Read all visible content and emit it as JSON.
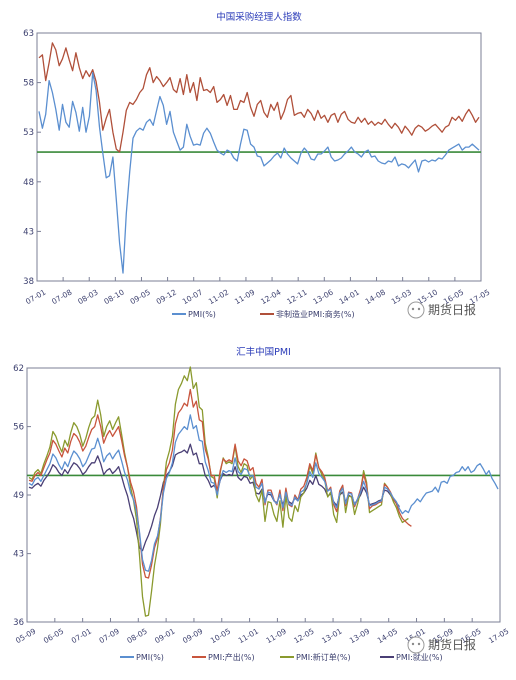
{
  "watermark": "期货日报",
  "chart_data": [
    {
      "type": "line",
      "title": "中国采购经理人指数",
      "ylim": [
        38,
        63
      ],
      "yticks": [
        "38",
        "43",
        "48",
        "53",
        "58",
        "63"
      ],
      "xticks": [
        "07-01",
        "07-08",
        "08-03",
        "08-10",
        "09-05",
        "09-12",
        "10-07",
        "11-02",
        "11-09",
        "12-04",
        "12-11",
        "13-06",
        "14-01",
        "14-08",
        "15-03",
        "15-10",
        "16-05",
        "17-05"
      ],
      "reference_line": 51,
      "grid": false,
      "legend_position": "bottom",
      "colors": {
        "frame": "#7b7f96",
        "axis_text": "#3b3f6e",
        "title": "#2a3bb8",
        "ref_line": "#3a8a3a"
      },
      "series": [
        {
          "name": "PMI(%)",
          "color": "#5b8fd0",
          "values": [
            55.1,
            53.4,
            54.8,
            58.2,
            57.0,
            55.3,
            53.2,
            55.8,
            54.0,
            53.5,
            56.1,
            55.0,
            53.1,
            55.5,
            53.0,
            54.6,
            59.0,
            57.2,
            53.5,
            50.9,
            48.4,
            48.6,
            50.5,
            46.2,
            41.8,
            38.8,
            44.8,
            49.0,
            52.4,
            53.1,
            53.4,
            53.2,
            54.0,
            54.3,
            53.7,
            55.2,
            56.6,
            55.7,
            53.8,
            55.1,
            53.0,
            52.1,
            51.2,
            51.5,
            53.8,
            52.6,
            51.7,
            51.8,
            51.7,
            52.9,
            53.4,
            52.9,
            52.0,
            51.2,
            50.9,
            50.7,
            51.2,
            51.0,
            50.4,
            50.1,
            51.8,
            53.3,
            53.2,
            51.8,
            51.5,
            50.6,
            50.5,
            49.6,
            49.9,
            50.2,
            50.6,
            50.9,
            50.4,
            51.4,
            50.8,
            50.4,
            50.1,
            49.8,
            50.9,
            51.4,
            51.0,
            50.3,
            50.2,
            50.8,
            50.8,
            51.1,
            51.5,
            50.5,
            50.1,
            50.2,
            50.4,
            50.8,
            51.1,
            51.5,
            51.0,
            50.8,
            50.5,
            51.0,
            51.2,
            50.5,
            50.6,
            50.1,
            49.9,
            49.8,
            50.1,
            50.0,
            50.5,
            49.6,
            49.8,
            49.7,
            49.4,
            49.8,
            50.2,
            49.0,
            50.1,
            50.2,
            50.0,
            50.2,
            50.1,
            50.4,
            50.3,
            50.7,
            51.2,
            51.4,
            51.6,
            51.8,
            51.2,
            51.5,
            51.5,
            51.8,
            51.5,
            51.2
          ]
        },
        {
          "name": "非制造业PMI:商务(%)",
          "color": "#b0503a",
          "values": [
            60.5,
            60.8,
            58.2,
            60.0,
            62.0,
            61.3,
            59.7,
            60.4,
            61.5,
            60.3,
            59.2,
            61.0,
            59.5,
            58.4,
            59.2,
            58.6,
            59.3,
            58.1,
            56.0,
            53.2,
            54.4,
            55.3,
            53.0,
            51.3,
            51.0,
            53.0,
            55.2,
            56.0,
            55.8,
            56.3,
            57.0,
            57.4,
            58.8,
            59.5,
            58.0,
            58.6,
            58.2,
            57.6,
            58.0,
            58.5,
            57.3,
            57.0,
            58.4,
            56.8,
            58.8,
            57.0,
            58.0,
            56.2,
            58.5,
            57.2,
            57.3,
            57.0,
            57.6,
            56.0,
            56.3,
            56.8,
            55.7,
            56.7,
            55.3,
            55.3,
            56.2,
            56.0,
            57.0,
            55.5,
            54.6,
            55.8,
            56.2,
            55.0,
            54.5,
            55.8,
            55.2,
            56.0,
            54.3,
            55.1,
            56.3,
            56.7,
            54.7,
            54.9,
            55.0,
            54.5,
            55.3,
            54.9,
            54.2,
            55.2,
            54.4,
            54.7,
            54.0,
            54.7,
            54.9,
            54.0,
            54.8,
            55.1,
            54.3,
            54.0,
            53.9,
            54.5,
            54.0,
            54.4,
            53.8,
            54.1,
            53.7,
            54.0,
            53.8,
            54.3,
            53.8,
            53.4,
            53.9,
            53.5,
            52.9,
            53.6,
            53.2,
            52.7,
            53.4,
            53.7,
            53.5,
            53.1,
            53.3,
            53.6,
            53.8,
            53.4,
            53.0,
            53.5,
            53.7,
            54.5,
            54.2,
            54.6,
            54.1,
            54.8,
            55.3,
            54.7,
            54.0,
            54.5
          ]
        }
      ]
    },
    {
      "type": "line",
      "title": "汇丰中国PMI",
      "ylim": [
        36,
        62
      ],
      "yticks": [
        "36",
        "43",
        "49",
        "56",
        "62"
      ],
      "xticks": [
        "05-09",
        "06-05",
        "07-01",
        "07-09",
        "08-05",
        "09-01",
        "09-09",
        "10-05",
        "11-01",
        "11-09",
        "12-05",
        "13-01",
        "13-09",
        "14-05",
        "15-01",
        "15-09",
        "16-05",
        "17-05"
      ],
      "reference_line": 51,
      "grid": false,
      "legend_position": "bottom",
      "colors": {
        "frame": "#7b7f96",
        "axis_text": "#3b3f6e",
        "title": "#2a3bb8",
        "ref_line": "#3a8a3a"
      },
      "series": [
        {
          "name": "PMI(%)",
          "color": "#5b8fd0",
          "values": [
            50.2,
            50.0,
            50.6,
            50.8,
            50.4,
            51.0,
            51.6,
            52.2,
            53.2,
            52.8,
            52.1,
            51.6,
            52.4,
            51.9,
            52.8,
            53.5,
            53.2,
            52.7,
            51.9,
            52.3,
            53.0,
            53.7,
            53.8,
            54.8,
            53.8,
            52.4,
            53.0,
            53.3,
            52.7,
            53.2,
            53.6,
            52.5,
            51.3,
            50.5,
            49.2,
            48.5,
            47.3,
            45.2,
            42.4,
            41.3,
            41.2,
            42.3,
            44.0,
            44.8,
            46.5,
            49.2,
            50.7,
            51.3,
            52.3,
            54.4,
            55.2,
            55.6,
            56.0,
            55.7,
            57.2,
            55.8,
            56.1,
            54.6,
            54.5,
            52.4,
            51.5,
            50.3,
            50.2,
            49.0,
            50.6,
            51.5,
            51.3,
            51.5,
            51.4,
            52.8,
            51.4,
            51.1,
            51.7,
            51.6,
            50.9,
            51.0,
            49.8,
            49.6,
            50.2,
            48.2,
            49.3,
            49.2,
            48.4,
            48.1,
            49.1,
            47.7,
            49.3,
            48.1,
            47.9,
            48.8,
            48.4,
            49.3,
            49.5,
            50.2,
            51.4,
            50.8,
            52.3,
            51.2,
            50.8,
            50.4,
            49.4,
            49.6,
            48.2,
            47.7,
            49.2,
            49.7,
            48.1,
            49.2,
            49.1,
            48.0,
            48.6,
            49.3,
            50.4,
            49.5,
            47.9,
            48.0,
            48.1,
            48.3,
            48.4,
            49.8,
            49.6,
            49.2,
            48.7,
            48.3,
            47.6,
            47.1,
            47.4,
            47.2,
            47.9,
            48.2,
            48.6,
            48.3,
            48.8,
            49.2,
            49.3,
            49.4,
            49.8,
            49.3,
            50.3,
            50.4,
            50.2,
            50.9,
            51.0,
            51.3,
            51.4,
            51.9,
            51.5,
            51.9,
            51.3,
            51.5,
            52.0,
            52.2,
            51.7,
            51.1,
            51.5,
            50.7,
            50.2,
            49.6
          ]
        },
        {
          "name": "PMI:产出(%)",
          "color": "#c8553d",
          "values": [
            50.5,
            50.4,
            51.0,
            51.3,
            51.0,
            51.8,
            52.6,
            53.3,
            54.6,
            54.2,
            53.5,
            52.9,
            53.8,
            53.3,
            54.5,
            55.3,
            55.0,
            54.4,
            53.5,
            54.0,
            54.9,
            55.7,
            56.0,
            57.2,
            56.0,
            54.3,
            55.1,
            55.6,
            55.0,
            55.5,
            56.0,
            54.6,
            53.0,
            51.8,
            50.3,
            49.3,
            47.8,
            45.0,
            41.9,
            40.6,
            40.5,
            41.8,
            43.6,
            44.6,
            46.6,
            49.7,
            51.6,
            52.3,
            53.6,
            56.3,
            57.4,
            57.8,
            58.4,
            58.1,
            59.8,
            58.0,
            58.6,
            56.7,
            56.5,
            53.7,
            52.7,
            51.0,
            51.0,
            49.4,
            51.5,
            52.7,
            52.4,
            52.6,
            52.4,
            54.2,
            52.5,
            52.0,
            52.7,
            52.5,
            51.5,
            51.8,
            50.2,
            49.8,
            50.6,
            48.0,
            49.5,
            49.5,
            48.5,
            48.0,
            49.5,
            47.4,
            49.7,
            48.0,
            47.8,
            49.0,
            48.5,
            49.6,
            49.9,
            50.8,
            52.2,
            51.5,
            53.1,
            51.8,
            51.4,
            50.8,
            49.4,
            49.8,
            48.0,
            47.3,
            49.4,
            50.0,
            47.9,
            49.3,
            49.2,
            47.8,
            48.6,
            49.6,
            51.1,
            50.0,
            47.6,
            47.9,
            48.0,
            48.2,
            48.3,
            50.1,
            49.8,
            49.3,
            48.6,
            48.1,
            47.2,
            46.6,
            46.3,
            46.0,
            45.8
          ]
        },
        {
          "name": "PMI:新订单(%)",
          "color": "#8a9a2e",
          "values": [
            50.8,
            50.6,
            51.3,
            51.6,
            51.2,
            52.2,
            53.0,
            53.9,
            55.5,
            55.0,
            54.1,
            53.4,
            54.6,
            54.0,
            55.4,
            56.4,
            56.0,
            55.2,
            54.0,
            54.8,
            55.9,
            56.8,
            57.1,
            58.7,
            57.2,
            55.0,
            56.0,
            56.6,
            55.7,
            56.4,
            57.0,
            55.2,
            53.3,
            51.8,
            49.8,
            48.4,
            46.5,
            42.8,
            38.6,
            36.6,
            36.7,
            39.1,
            41.8,
            43.6,
            46.0,
            49.8,
            52.4,
            53.5,
            55.0,
            58.3,
            59.8,
            60.4,
            61.2,
            60.7,
            62.1,
            59.9,
            60.5,
            58.0,
            57.7,
            54.3,
            52.9,
            50.9,
            50.7,
            48.7,
            51.3,
            52.8,
            52.2,
            52.4,
            52.2,
            54.0,
            51.9,
            51.3,
            52.2,
            52.0,
            50.6,
            51.0,
            49.0,
            48.3,
            49.5,
            46.3,
            48.3,
            48.2,
            47.0,
            46.3,
            48.4,
            45.7,
            48.9,
            46.7,
            46.3,
            47.9,
            47.3,
            48.8,
            49.2,
            50.3,
            52.0,
            51.2,
            53.3,
            51.8,
            51.1,
            50.5,
            48.8,
            49.3,
            47.0,
            46.2,
            49.0,
            49.9,
            47.2,
            48.9,
            48.8,
            47.0,
            48.1,
            49.4,
            51.5,
            50.3,
            47.2,
            47.4,
            47.6,
            47.8,
            48.0,
            50.2,
            49.8,
            49.1,
            48.3,
            47.7,
            46.8,
            46.2,
            46.4,
            46.6
          ]
        },
        {
          "name": "PMI:就业(%)",
          "color": "#4a3f75",
          "values": [
            49.8,
            49.7,
            50.0,
            50.2,
            49.9,
            50.5,
            50.9,
            51.4,
            52.1,
            51.8,
            51.3,
            51.0,
            51.6,
            51.2,
            51.8,
            52.3,
            52.1,
            51.7,
            51.1,
            51.4,
            51.9,
            52.3,
            52.3,
            53.0,
            52.2,
            51.1,
            51.5,
            51.7,
            51.2,
            51.5,
            51.9,
            50.9,
            49.8,
            48.9,
            47.5,
            46.6,
            45.2,
            43.6,
            43.3,
            44.2,
            44.9,
            45.8,
            46.9,
            47.7,
            48.9,
            50.3,
            51.0,
            51.4,
            52.0,
            53.1,
            53.3,
            53.4,
            53.6,
            53.3,
            54.2,
            53.1,
            53.3,
            52.2,
            52.2,
            51.0,
            50.5,
            49.8,
            50.0,
            49.3,
            50.5,
            51.2,
            51.0,
            51.1,
            51.0,
            51.9,
            50.8,
            50.5,
            50.9,
            50.8,
            50.2,
            50.3,
            49.2,
            49.1,
            49.6,
            48.4,
            49.1,
            49.0,
            48.4,
            48.2,
            49.0,
            48.0,
            49.0,
            48.3,
            48.1,
            48.7,
            48.4,
            49.0,
            49.2,
            49.7,
            50.5,
            50.1,
            51.0,
            50.1,
            49.9,
            49.6,
            48.9,
            49.1,
            48.3,
            47.9,
            49.0,
            49.3,
            48.3,
            49.0,
            48.8,
            48.1,
            48.5,
            49.0,
            49.8,
            49.2,
            48.0,
            48.1,
            48.2,
            48.4,
            48.5,
            49.5,
            49.4,
            49.0,
            48.5,
            48.2,
            47.8
          ]
        }
      ]
    }
  ]
}
